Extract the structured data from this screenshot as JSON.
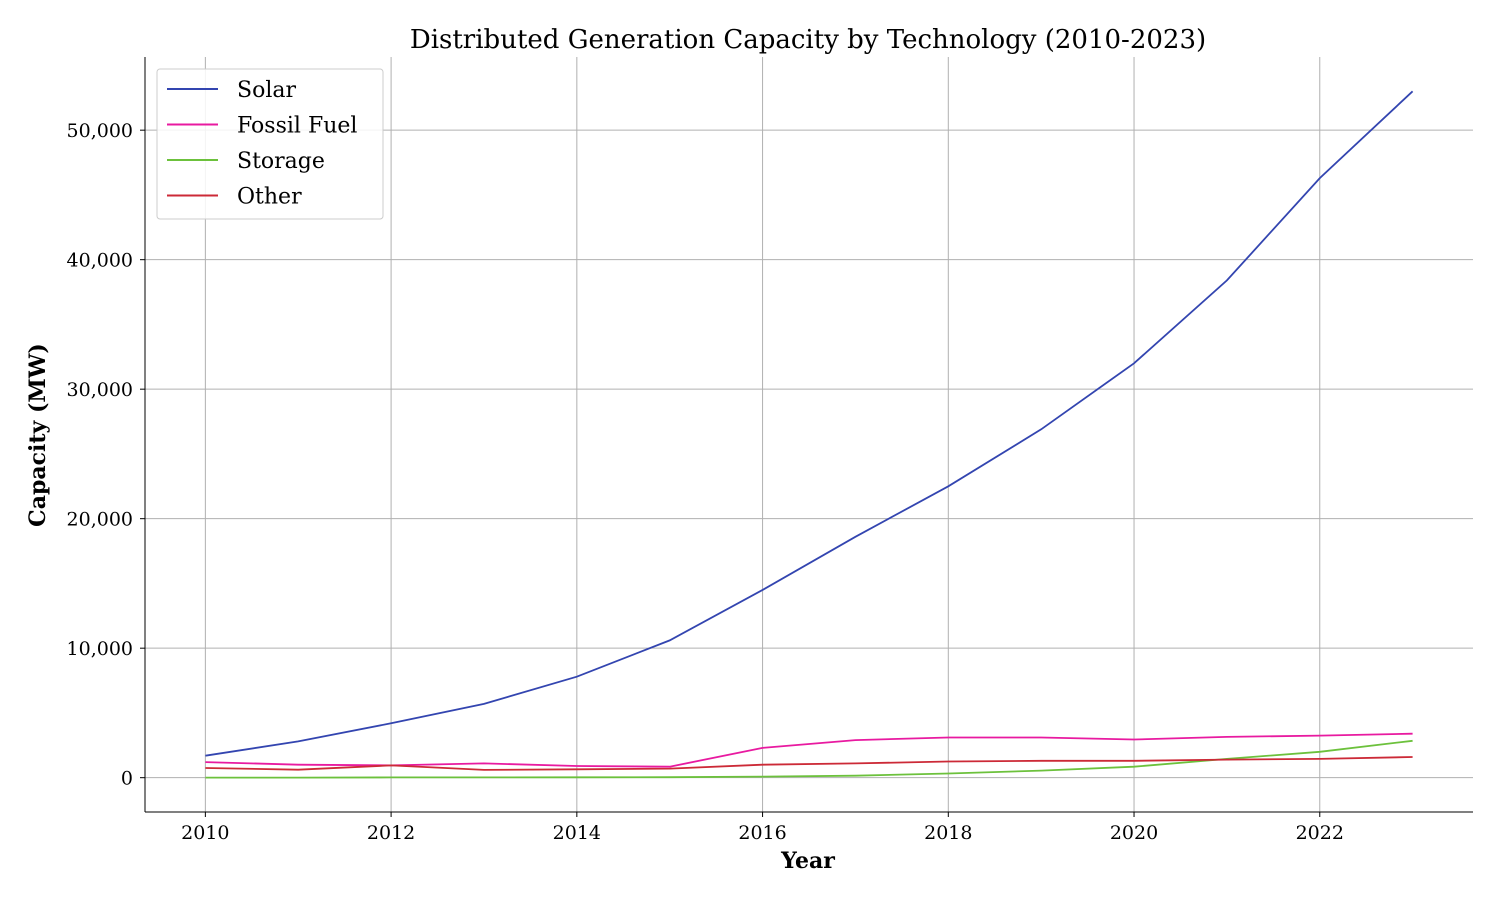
{
  "chart_data": {
    "type": "line",
    "title": "Distributed Generation Capacity by Technology (2010-2023)",
    "xlabel": "Year",
    "ylabel": "Capacity (MW)",
    "x": [
      2010,
      2011,
      2012,
      2013,
      2014,
      2015,
      2016,
      2017,
      2018,
      2019,
      2020,
      2021,
      2022,
      2023
    ],
    "xlim": [
      2009.35,
      2023.65
    ],
    "ylim": [
      -2650,
      55650
    ],
    "x_ticks": [
      2010,
      2012,
      2014,
      2016,
      2018,
      2020,
      2022
    ],
    "x_tick_labels": [
      "2010",
      "2012",
      "2014",
      "2016",
      "2018",
      "2020",
      "2022"
    ],
    "y_ticks": [
      0,
      10000,
      20000,
      30000,
      40000,
      50000
    ],
    "y_tick_labels": [
      "0",
      "10,000",
      "20,000",
      "30,000",
      "40,000",
      "50,000"
    ],
    "grid": true,
    "legend_position": "top-left",
    "series": [
      {
        "name": "Solar",
        "color": "#3345b0",
        "values": [
          1700,
          2800,
          4200,
          5700,
          7800,
          10600,
          14500,
          18600,
          22500,
          26900,
          32000,
          38400,
          46300,
          53000
        ]
      },
      {
        "name": "Fossil Fuel",
        "color": "#e81aa0",
        "values": [
          1200,
          1000,
          950,
          1100,
          900,
          850,
          2300,
          2900,
          3100,
          3100,
          2950,
          3150,
          3250,
          3400
        ]
      },
      {
        "name": "Storage",
        "color": "#6cc13c",
        "values": [
          10,
          10,
          20,
          20,
          30,
          40,
          80,
          150,
          320,
          550,
          850,
          1450,
          2000,
          2850
        ]
      },
      {
        "name": "Other",
        "color": "#cc2a37",
        "values": [
          750,
          620,
          950,
          600,
          650,
          700,
          1000,
          1100,
          1250,
          1300,
          1300,
          1400,
          1450,
          1600
        ]
      }
    ]
  }
}
